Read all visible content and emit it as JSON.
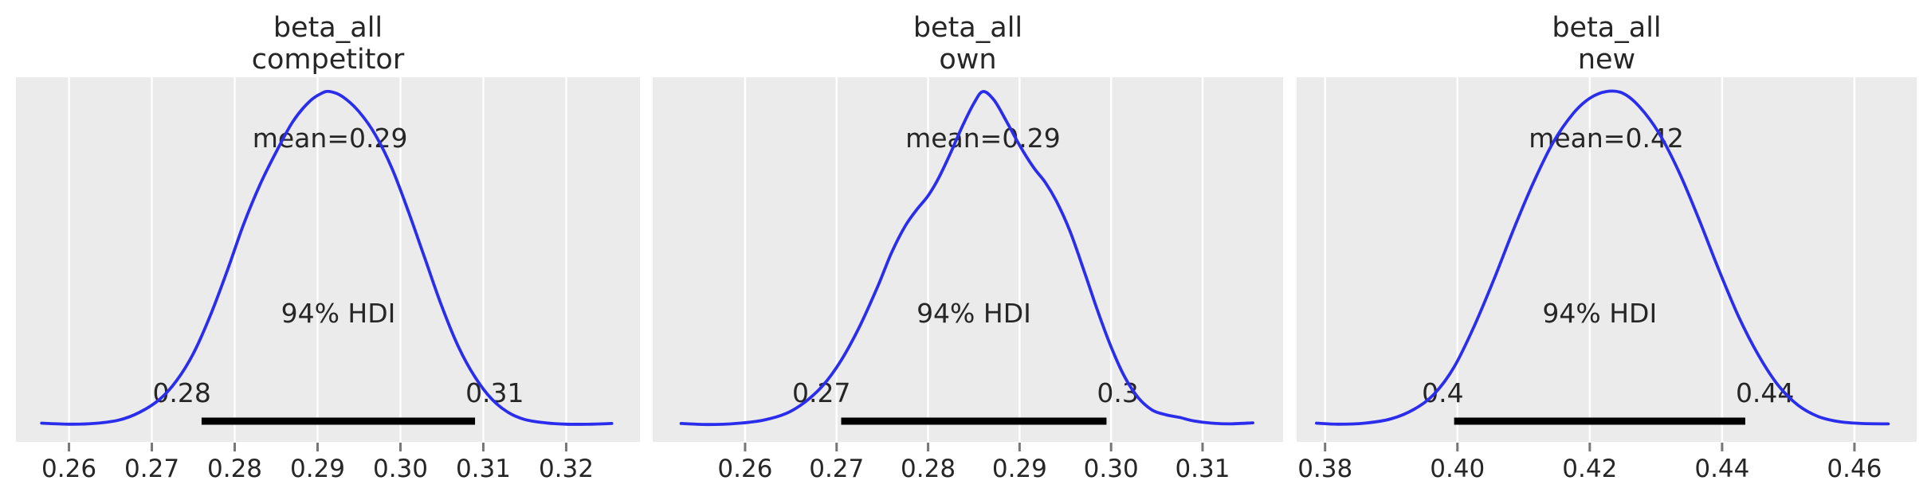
{
  "figure": {
    "kind": "posterior-kde-panels",
    "background": "#ffffff"
  },
  "colors": {
    "curve": "#2a2eec",
    "plot_bg": "#ebebeb",
    "gridline": "#ffffff",
    "hdi_bar": "#000000",
    "text": "#262626",
    "tick_mark": "#777777"
  },
  "chart_data": [
    {
      "type": "kde",
      "title_line1": "beta_all",
      "title_line2": "competitor",
      "mean": 0.29,
      "mean_label": "mean=0.29",
      "hdi": {
        "label": "94% HDI",
        "probability": 0.94,
        "low": 0.276,
        "high": 0.309,
        "low_label": "0.28",
        "high_label": "0.31"
      },
      "xlim": [
        0.2536,
        0.3289
      ],
      "x_ticks": [
        0.26,
        0.27,
        0.28,
        0.29,
        0.3,
        0.31,
        0.32
      ],
      "x_tick_labels": [
        "0.26",
        "0.27",
        "0.28",
        "0.29",
        "0.30",
        "0.31",
        "0.32"
      ],
      "curve": {
        "x": [
          0.2567,
          0.26,
          0.263,
          0.266,
          0.2685,
          0.271,
          0.273,
          0.275,
          0.277,
          0.279,
          0.281,
          0.283,
          0.285,
          0.287,
          0.289,
          0.2905,
          0.2915,
          0.293,
          0.295,
          0.297,
          0.299,
          0.301,
          0.303,
          0.305,
          0.307,
          0.309,
          0.311,
          0.313,
          0.315,
          0.3175,
          0.32,
          0.323,
          0.3255
        ],
        "density": [
          0.013,
          0.01,
          0.012,
          0.022,
          0.045,
          0.085,
          0.14,
          0.22,
          0.33,
          0.46,
          0.6,
          0.72,
          0.82,
          0.91,
          0.97,
          0.995,
          1.0,
          0.985,
          0.94,
          0.87,
          0.77,
          0.64,
          0.5,
          0.36,
          0.24,
          0.15,
          0.085,
          0.045,
          0.024,
          0.014,
          0.01,
          0.01,
          0.012
        ]
      }
    },
    {
      "type": "kde",
      "title_line1": "beta_all",
      "title_line2": "own",
      "mean": 0.29,
      "mean_label": "mean=0.29",
      "hdi": {
        "label": "94% HDI",
        "probability": 0.94,
        "low": 0.2705,
        "high": 0.2995,
        "low_label": "0.27",
        "high_label": "0.3"
      },
      "xlim": [
        0.2499,
        0.3188
      ],
      "x_ticks": [
        0.26,
        0.27,
        0.28,
        0.29,
        0.3,
        0.31
      ],
      "x_tick_labels": [
        "0.26",
        "0.27",
        "0.28",
        "0.29",
        "0.30",
        "0.31"
      ],
      "curve": {
        "x": [
          0.253,
          0.256,
          0.259,
          0.262,
          0.2645,
          0.2665,
          0.2685,
          0.2705,
          0.2725,
          0.2745,
          0.276,
          0.2775,
          0.2788,
          0.28,
          0.2812,
          0.2825,
          0.2838,
          0.285,
          0.286,
          0.2872,
          0.2885,
          0.29,
          0.2915,
          0.2928,
          0.294,
          0.2955,
          0.297,
          0.2985,
          0.3,
          0.3015,
          0.303,
          0.3045,
          0.306,
          0.3075,
          0.309,
          0.311,
          0.313,
          0.3155
        ],
        "density": [
          0.012,
          0.009,
          0.012,
          0.022,
          0.042,
          0.075,
          0.125,
          0.2,
          0.3,
          0.42,
          0.52,
          0.6,
          0.65,
          0.69,
          0.745,
          0.82,
          0.9,
          0.965,
          1.0,
          0.975,
          0.915,
          0.84,
          0.775,
          0.73,
          0.675,
          0.585,
          0.47,
          0.35,
          0.24,
          0.15,
          0.088,
          0.052,
          0.038,
          0.03,
          0.02,
          0.013,
          0.011,
          0.014
        ]
      }
    },
    {
      "type": "kde",
      "title_line1": "beta_all",
      "title_line2": "new",
      "mean": 0.42,
      "mean_label": "mean=0.42",
      "hdi": {
        "label": "94% HDI",
        "probability": 0.94,
        "low": 0.3995,
        "high": 0.4435,
        "low_label": "0.4",
        "high_label": "0.44"
      },
      "xlim": [
        0.3757,
        0.4694
      ],
      "x_ticks": [
        0.38,
        0.4,
        0.42,
        0.44,
        0.46
      ],
      "x_tick_labels": [
        "0.38",
        "0.40",
        "0.42",
        "0.44",
        "0.46"
      ],
      "curve": {
        "x": [
          0.3787,
          0.382,
          0.386,
          0.39,
          0.3935,
          0.3965,
          0.3995,
          0.4025,
          0.4055,
          0.4085,
          0.4115,
          0.4145,
          0.4175,
          0.42,
          0.4225,
          0.425,
          0.4275,
          0.4305,
          0.4335,
          0.4365,
          0.4395,
          0.4425,
          0.4455,
          0.4485,
          0.4515,
          0.4545,
          0.4575,
          0.461,
          0.4651
        ],
        "density": [
          0.013,
          0.01,
          0.013,
          0.026,
          0.055,
          0.1,
          0.18,
          0.3,
          0.44,
          0.59,
          0.73,
          0.85,
          0.935,
          0.98,
          1.0,
          0.995,
          0.955,
          0.875,
          0.76,
          0.62,
          0.47,
          0.33,
          0.215,
          0.125,
          0.066,
          0.033,
          0.018,
          0.012,
          0.011
        ]
      }
    }
  ]
}
